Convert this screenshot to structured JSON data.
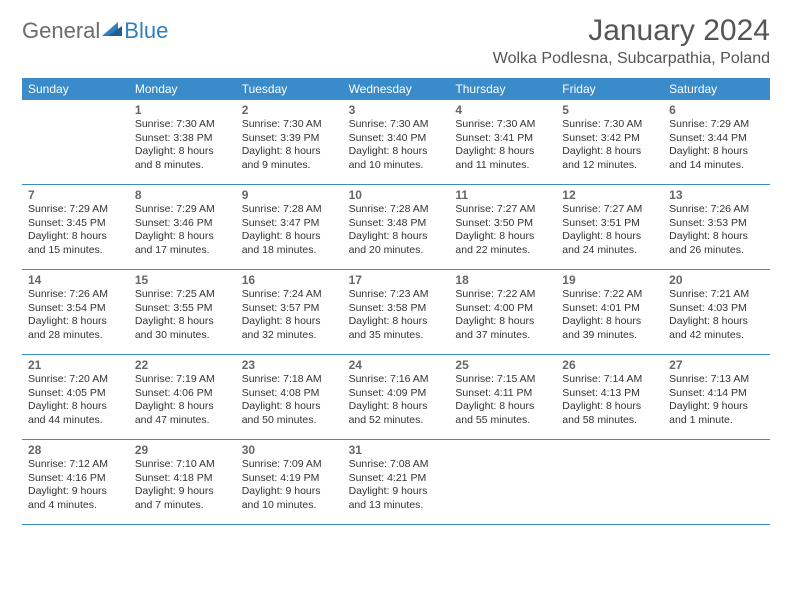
{
  "brand": {
    "part1": "General",
    "part2": "Blue"
  },
  "title": "January 2024",
  "location": "Wolka Podlesna, Subcarpathia, Poland",
  "colors": {
    "header_bg": "#3a8bc9",
    "header_text": "#ffffff",
    "border": "#3a8bc9",
    "title_color": "#555555",
    "body_text": "#333333",
    "daynum_color": "#666666",
    "logo_gray": "#6b6b6b",
    "logo_blue": "#2f7fbf"
  },
  "typography": {
    "title_fontsize": 30,
    "location_fontsize": 16,
    "weekday_fontsize": 12,
    "daynum_fontsize": 12,
    "body_fontsize": 10.5
  },
  "weekdays": [
    "Sunday",
    "Monday",
    "Tuesday",
    "Wednesday",
    "Thursday",
    "Friday",
    "Saturday"
  ],
  "weeks": [
    [
      {
        "num": "",
        "lines": []
      },
      {
        "num": "1",
        "lines": [
          "Sunrise: 7:30 AM",
          "Sunset: 3:38 PM",
          "Daylight: 8 hours",
          "and 8 minutes."
        ]
      },
      {
        "num": "2",
        "lines": [
          "Sunrise: 7:30 AM",
          "Sunset: 3:39 PM",
          "Daylight: 8 hours",
          "and 9 minutes."
        ]
      },
      {
        "num": "3",
        "lines": [
          "Sunrise: 7:30 AM",
          "Sunset: 3:40 PM",
          "Daylight: 8 hours",
          "and 10 minutes."
        ]
      },
      {
        "num": "4",
        "lines": [
          "Sunrise: 7:30 AM",
          "Sunset: 3:41 PM",
          "Daylight: 8 hours",
          "and 11 minutes."
        ]
      },
      {
        "num": "5",
        "lines": [
          "Sunrise: 7:30 AM",
          "Sunset: 3:42 PM",
          "Daylight: 8 hours",
          "and 12 minutes."
        ]
      },
      {
        "num": "6",
        "lines": [
          "Sunrise: 7:29 AM",
          "Sunset: 3:44 PM",
          "Daylight: 8 hours",
          "and 14 minutes."
        ]
      }
    ],
    [
      {
        "num": "7",
        "lines": [
          "Sunrise: 7:29 AM",
          "Sunset: 3:45 PM",
          "Daylight: 8 hours",
          "and 15 minutes."
        ]
      },
      {
        "num": "8",
        "lines": [
          "Sunrise: 7:29 AM",
          "Sunset: 3:46 PM",
          "Daylight: 8 hours",
          "and 17 minutes."
        ]
      },
      {
        "num": "9",
        "lines": [
          "Sunrise: 7:28 AM",
          "Sunset: 3:47 PM",
          "Daylight: 8 hours",
          "and 18 minutes."
        ]
      },
      {
        "num": "10",
        "lines": [
          "Sunrise: 7:28 AM",
          "Sunset: 3:48 PM",
          "Daylight: 8 hours",
          "and 20 minutes."
        ]
      },
      {
        "num": "11",
        "lines": [
          "Sunrise: 7:27 AM",
          "Sunset: 3:50 PM",
          "Daylight: 8 hours",
          "and 22 minutes."
        ]
      },
      {
        "num": "12",
        "lines": [
          "Sunrise: 7:27 AM",
          "Sunset: 3:51 PM",
          "Daylight: 8 hours",
          "and 24 minutes."
        ]
      },
      {
        "num": "13",
        "lines": [
          "Sunrise: 7:26 AM",
          "Sunset: 3:53 PM",
          "Daylight: 8 hours",
          "and 26 minutes."
        ]
      }
    ],
    [
      {
        "num": "14",
        "lines": [
          "Sunrise: 7:26 AM",
          "Sunset: 3:54 PM",
          "Daylight: 8 hours",
          "and 28 minutes."
        ]
      },
      {
        "num": "15",
        "lines": [
          "Sunrise: 7:25 AM",
          "Sunset: 3:55 PM",
          "Daylight: 8 hours",
          "and 30 minutes."
        ]
      },
      {
        "num": "16",
        "lines": [
          "Sunrise: 7:24 AM",
          "Sunset: 3:57 PM",
          "Daylight: 8 hours",
          "and 32 minutes."
        ]
      },
      {
        "num": "17",
        "lines": [
          "Sunrise: 7:23 AM",
          "Sunset: 3:58 PM",
          "Daylight: 8 hours",
          "and 35 minutes."
        ]
      },
      {
        "num": "18",
        "lines": [
          "Sunrise: 7:22 AM",
          "Sunset: 4:00 PM",
          "Daylight: 8 hours",
          "and 37 minutes."
        ]
      },
      {
        "num": "19",
        "lines": [
          "Sunrise: 7:22 AM",
          "Sunset: 4:01 PM",
          "Daylight: 8 hours",
          "and 39 minutes."
        ]
      },
      {
        "num": "20",
        "lines": [
          "Sunrise: 7:21 AM",
          "Sunset: 4:03 PM",
          "Daylight: 8 hours",
          "and 42 minutes."
        ]
      }
    ],
    [
      {
        "num": "21",
        "lines": [
          "Sunrise: 7:20 AM",
          "Sunset: 4:05 PM",
          "Daylight: 8 hours",
          "and 44 minutes."
        ]
      },
      {
        "num": "22",
        "lines": [
          "Sunrise: 7:19 AM",
          "Sunset: 4:06 PM",
          "Daylight: 8 hours",
          "and 47 minutes."
        ]
      },
      {
        "num": "23",
        "lines": [
          "Sunrise: 7:18 AM",
          "Sunset: 4:08 PM",
          "Daylight: 8 hours",
          "and 50 minutes."
        ]
      },
      {
        "num": "24",
        "lines": [
          "Sunrise: 7:16 AM",
          "Sunset: 4:09 PM",
          "Daylight: 8 hours",
          "and 52 minutes."
        ]
      },
      {
        "num": "25",
        "lines": [
          "Sunrise: 7:15 AM",
          "Sunset: 4:11 PM",
          "Daylight: 8 hours",
          "and 55 minutes."
        ]
      },
      {
        "num": "26",
        "lines": [
          "Sunrise: 7:14 AM",
          "Sunset: 4:13 PM",
          "Daylight: 8 hours",
          "and 58 minutes."
        ]
      },
      {
        "num": "27",
        "lines": [
          "Sunrise: 7:13 AM",
          "Sunset: 4:14 PM",
          "Daylight: 9 hours",
          "and 1 minute."
        ]
      }
    ],
    [
      {
        "num": "28",
        "lines": [
          "Sunrise: 7:12 AM",
          "Sunset: 4:16 PM",
          "Daylight: 9 hours",
          "and 4 minutes."
        ]
      },
      {
        "num": "29",
        "lines": [
          "Sunrise: 7:10 AM",
          "Sunset: 4:18 PM",
          "Daylight: 9 hours",
          "and 7 minutes."
        ]
      },
      {
        "num": "30",
        "lines": [
          "Sunrise: 7:09 AM",
          "Sunset: 4:19 PM",
          "Daylight: 9 hours",
          "and 10 minutes."
        ]
      },
      {
        "num": "31",
        "lines": [
          "Sunrise: 7:08 AM",
          "Sunset: 4:21 PM",
          "Daylight: 9 hours",
          "and 13 minutes."
        ]
      },
      {
        "num": "",
        "lines": []
      },
      {
        "num": "",
        "lines": []
      },
      {
        "num": "",
        "lines": []
      }
    ]
  ]
}
